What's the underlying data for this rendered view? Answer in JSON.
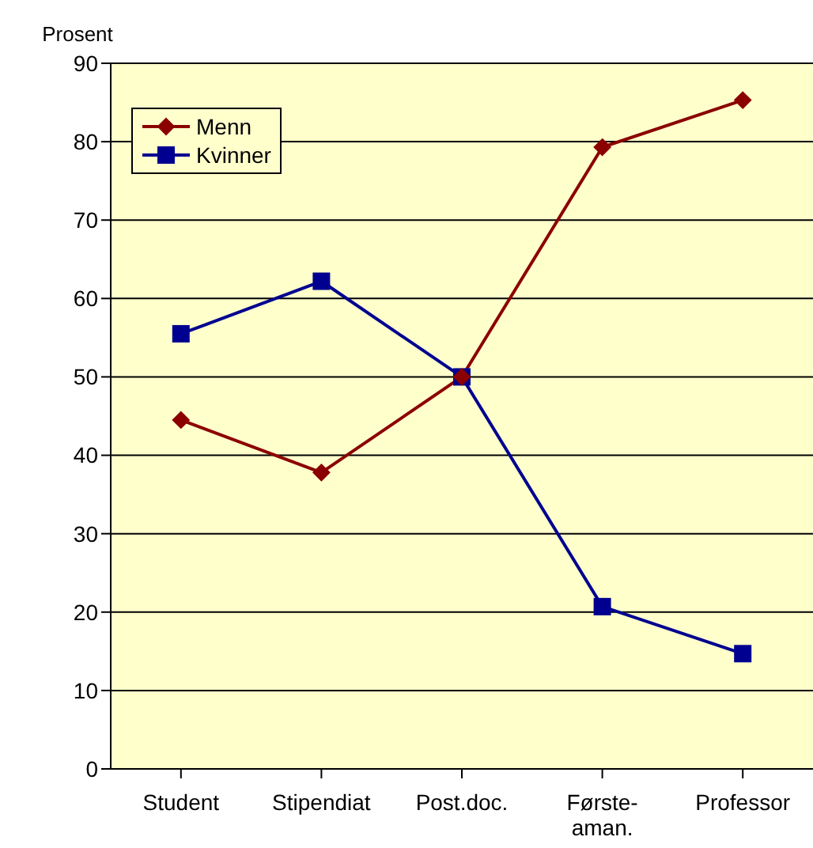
{
  "chart_data": {
    "type": "line",
    "ylabel": "Prosent",
    "categories": [
      "Student",
      "Stipendiat",
      "Post.doc.",
      "Første-\naman.",
      "Professor"
    ],
    "series": [
      {
        "name": "Menn",
        "color": "#8b0000",
        "marker": "diamond",
        "values": [
          44.5,
          37.8,
          50,
          79.3,
          85.3
        ]
      },
      {
        "name": "Kvinner",
        "color": "#000090",
        "marker": "square",
        "values": [
          55.5,
          62.2,
          50,
          20.7,
          14.7
        ]
      }
    ],
    "ylim": [
      0,
      90
    ],
    "yticks": [
      0,
      10,
      20,
      30,
      40,
      50,
      60,
      70,
      80,
      90
    ],
    "grid": "y",
    "legend": "top left",
    "line_style": "solid"
  }
}
